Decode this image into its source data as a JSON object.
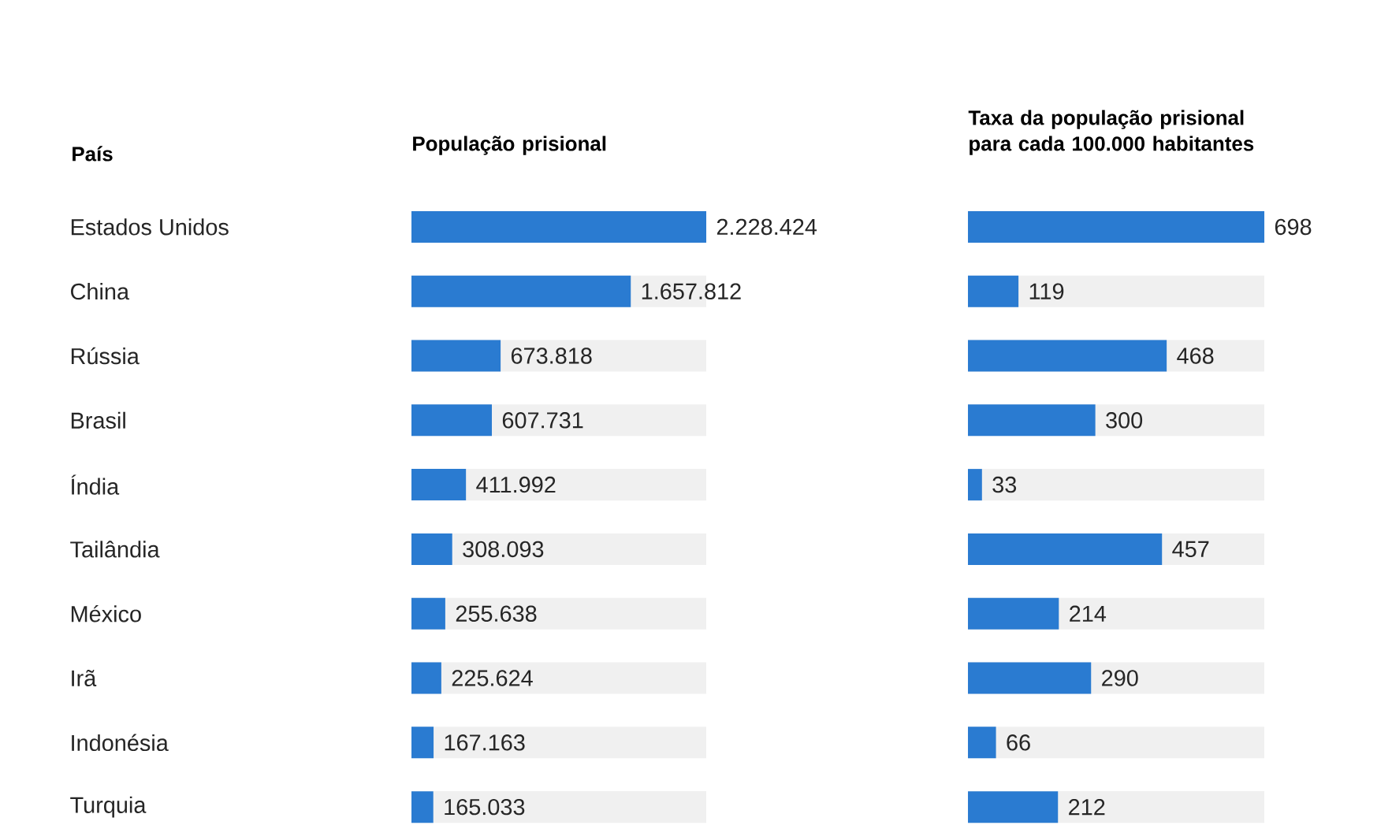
{
  "chart_data": [
    {
      "type": "bar",
      "orientation": "horizontal",
      "title": "População prisional",
      "ylabel": "País",
      "tick_labels": "y",
      "categories": [
        "Estados Unidos",
        "China",
        "Rússia",
        "Brasil",
        "Índia",
        "Tailândia",
        "México",
        "Irã",
        "Indonésia",
        "Turquia"
      ],
      "values": [
        2228424,
        1657812,
        673818,
        607731,
        411992,
        308093,
        255638,
        225624,
        167163,
        165033
      ],
      "value_labels": [
        "2.228.424",
        "1.657.812",
        "673.818",
        "607.731",
        "411.992",
        "308.093",
        "255.638",
        "225.624",
        "167.163",
        "165.033"
      ],
      "color": "#2a7bd1"
    },
    {
      "type": "bar",
      "orientation": "horizontal",
      "title": "Taxa da população prisional para cada 100.000 habitantes",
      "tick_labels": false,
      "categories": [
        null,
        null,
        null,
        null,
        null,
        null,
        null,
        null,
        null,
        null
      ],
      "values": [
        698,
        119,
        468,
        300,
        33,
        457,
        214,
        290,
        66,
        212
      ],
      "value_labels": [
        "698",
        "119",
        "468",
        "300",
        "33",
        "457",
        "214",
        "290",
        "66",
        "212"
      ],
      "color": "#2a7bd1"
    }
  ]
}
